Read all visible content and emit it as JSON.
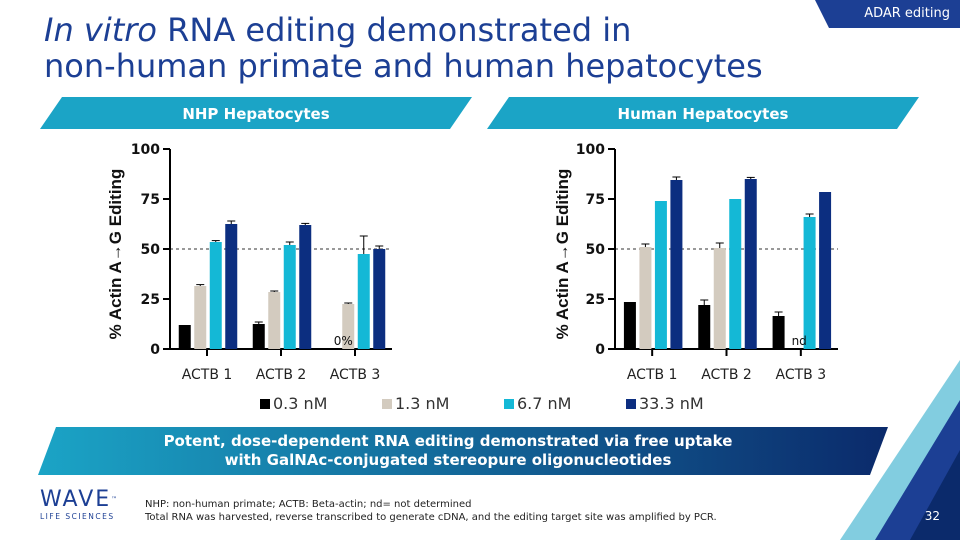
{
  "slide": {
    "title_italic": "In vitro",
    "title_line1_rest": " RNA editing demonstrated in",
    "title_line2": "non-human primate and human hepatocytes",
    "tag": "ADAR editing",
    "page_number": "32",
    "banner_line1": "Potent, dose-dependent RNA editing demonstrated via free uptake",
    "banner_line2": "with GalNAc-conjugated stereopure oligonucleotides",
    "footnote_line1": "NHP: non-human primate; ACTB: Beta-actin; nd= not determined",
    "footnote_line2": "Total RNA was harvested, reverse transcribed to generate cDNA, and the editing target site was amplified by PCR.",
    "logo_main": "WAVE",
    "logo_tm": "™",
    "logo_sub": "LIFE SCIENCES",
    "colors": {
      "navy": "#1c3f94",
      "teal": "#1ba4c6",
      "dark_navy": "#0b2a6b"
    }
  },
  "chart_data": [
    {
      "type": "bar",
      "title": "NHP Hepatocytes",
      "ylabel": "% Actin A→G Editing",
      "categories": [
        "ACTB 1",
        "ACTB 2",
        "ACTB 3"
      ],
      "ylim": [
        0,
        100
      ],
      "yticks": [
        0,
        25,
        50,
        75,
        100
      ],
      "reference_line": 50,
      "series": [
        {
          "name": "0.3 nM",
          "color": "#000000",
          "values": [
            12,
            12.5,
            0
          ],
          "errors": [
            0,
            1,
            0
          ]
        },
        {
          "name": "1.3 nM",
          "color": "#d3cbbf",
          "values": [
            31.5,
            28.5,
            22.5
          ],
          "errors": [
            0.7,
            0.5,
            0.5
          ]
        },
        {
          "name": "6.7 nM",
          "color": "#14b8d6",
          "values": [
            53.5,
            52,
            47.5
          ],
          "errors": [
            0.7,
            1.5,
            9
          ]
        },
        {
          "name": "33.3 nM",
          "color": "#0c2e80",
          "values": [
            62.5,
            62,
            50
          ],
          "errors": [
            1.5,
            0.8,
            1.5
          ]
        }
      ],
      "annotations": [
        {
          "category": "ACTB 3",
          "text": "0%"
        }
      ]
    },
    {
      "type": "bar",
      "title": "Human Hepatocytes",
      "ylabel": "% Actin A→G Editing",
      "categories": [
        "ACTB 1",
        "ACTB 2",
        "ACTB 3"
      ],
      "ylim": [
        0,
        100
      ],
      "yticks": [
        0,
        25,
        50,
        75,
        100
      ],
      "reference_line": 50,
      "series": [
        {
          "name": "0.3 nM",
          "color": "#000000",
          "values": [
            23.5,
            22,
            16.5
          ],
          "errors": [
            0,
            2.5,
            2
          ]
        },
        {
          "name": "1.3 nM",
          "color": "#d3cbbf",
          "values": [
            51,
            50.5,
            null
          ],
          "errors": [
            1.5,
            2.5,
            0
          ]
        },
        {
          "name": "6.7 nM",
          "color": "#14b8d6",
          "values": [
            74,
            75,
            66
          ],
          "errors": [
            0,
            0,
            1.5
          ]
        },
        {
          "name": "33.3 nM",
          "color": "#0c2e80",
          "values": [
            84.5,
            85,
            78.5
          ],
          "errors": [
            1.5,
            0.8,
            0
          ]
        }
      ],
      "annotations": [
        {
          "category": "ACTB 3",
          "text": "nd"
        }
      ]
    }
  ]
}
